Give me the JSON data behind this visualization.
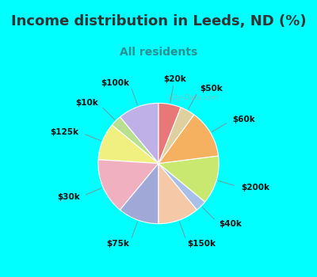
{
  "title": "Income distribution in Leeds, ND (%)",
  "subtitle": "All residents",
  "title_color": "#333333",
  "subtitle_color": "#2a9090",
  "background_color": "#00ffff",
  "chart_bg_start": "#e8f5ee",
  "labels": [
    "$100k",
    "$10k",
    "$125k",
    "$30k",
    "$75k",
    "$150k",
    "$40k",
    "$200k",
    "$60k",
    "$50k",
    "$20k"
  ],
  "values": [
    11,
    3,
    10,
    15,
    11,
    11,
    3,
    13,
    13,
    4,
    6
  ],
  "colors": [
    "#c0b0e8",
    "#b8e090",
    "#f0f080",
    "#f0b0c0",
    "#a0a8d8",
    "#f5c8a8",
    "#a8c0e8",
    "#c8e870",
    "#f5b060",
    "#e0d0a0",
    "#e87878"
  ],
  "label_fontsize": 7.5,
  "title_fontsize": 13,
  "subtitle_fontsize": 10,
  "startangle": 90
}
